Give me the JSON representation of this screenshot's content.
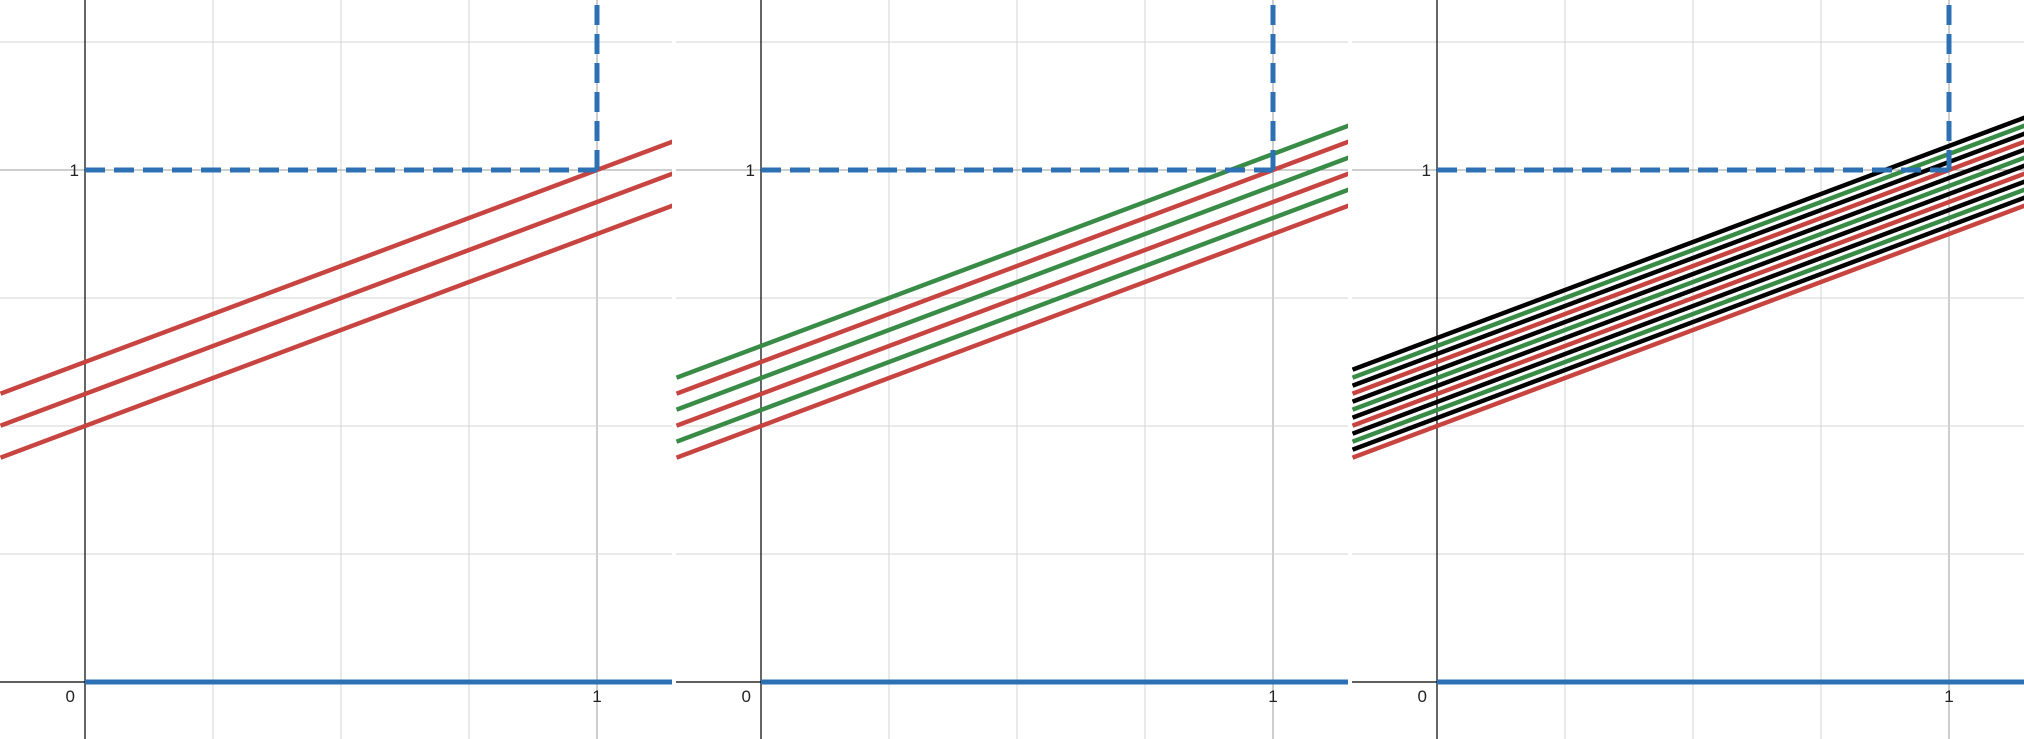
{
  "chart_data": [
    {
      "type": "line",
      "title": "",
      "xlabel": "",
      "ylabel": "",
      "xlim": [
        -0.165,
        1.15
      ],
      "ylim": [
        -0.11,
        1.33
      ],
      "grid": true,
      "x_major_ticks": [
        0,
        1
      ],
      "y_major_ticks": [
        1
      ],
      "minor_step": 0.25,
      "tick_labels": {
        "origin": "0",
        "x_one": "1",
        "y_one": "1"
      },
      "colors": {
        "red": "#c74440",
        "green": "#388c46",
        "black": "#000000",
        "blue": "#2d70b3"
      },
      "boundary": {
        "dashed": [
          {
            "x": [
              0,
              1
            ],
            "y": [
              1,
              1
            ]
          },
          {
            "x": [
              1,
              1
            ],
            "y": [
              1,
              1.35
            ]
          }
        ],
        "solid": [
          {
            "x": [
              0,
              1.15
            ],
            "y": [
              0,
              0
            ]
          }
        ]
      },
      "series": [
        {
          "color": "red",
          "slope": 0.375,
          "intercept": 0.5
        },
        {
          "color": "red",
          "slope": 0.375,
          "intercept": 0.5625
        },
        {
          "color": "red",
          "slope": 0.375,
          "intercept": 0.625
        }
      ]
    },
    {
      "type": "line",
      "title": "",
      "xlabel": "",
      "ylabel": "",
      "xlim": [
        -0.165,
        1.15
      ],
      "ylim": [
        -0.11,
        1.33
      ],
      "grid": true,
      "x_major_ticks": [
        0,
        1
      ],
      "y_major_ticks": [
        1
      ],
      "minor_step": 0.25,
      "tick_labels": {
        "origin": "0",
        "x_one": "1",
        "y_one": "1"
      },
      "colors": {
        "red": "#c74440",
        "green": "#388c46",
        "black": "#000000",
        "blue": "#2d70b3"
      },
      "boundary": {
        "dashed": [
          {
            "x": [
              0,
              1
            ],
            "y": [
              1,
              1
            ]
          },
          {
            "x": [
              1,
              1
            ],
            "y": [
              1,
              1.35
            ]
          }
        ],
        "solid": [
          {
            "x": [
              0,
              1.15
            ],
            "y": [
              0,
              0
            ]
          }
        ]
      },
      "series": [
        {
          "color": "red",
          "slope": 0.375,
          "intercept": 0.5
        },
        {
          "color": "green",
          "slope": 0.375,
          "intercept": 0.53125
        },
        {
          "color": "red",
          "slope": 0.375,
          "intercept": 0.5625
        },
        {
          "color": "green",
          "slope": 0.375,
          "intercept": 0.59375
        },
        {
          "color": "red",
          "slope": 0.375,
          "intercept": 0.625
        },
        {
          "color": "green",
          "slope": 0.375,
          "intercept": 0.65625
        }
      ]
    },
    {
      "type": "line",
      "title": "",
      "xlabel": "",
      "ylabel": "",
      "xlim": [
        -0.165,
        1.15
      ],
      "ylim": [
        -0.11,
        1.33
      ],
      "grid": true,
      "x_major_ticks": [
        0,
        1
      ],
      "y_major_ticks": [
        1
      ],
      "minor_step": 0.25,
      "tick_labels": {
        "origin": "0",
        "x_one": "1",
        "y_one": "1"
      },
      "colors": {
        "red": "#c74440",
        "green": "#388c46",
        "black": "#000000",
        "blue": "#2d70b3"
      },
      "boundary": {
        "dashed": [
          {
            "x": [
              0,
              1
            ],
            "y": [
              1,
              1
            ]
          },
          {
            "x": [
              1,
              1
            ],
            "y": [
              1,
              1.35
            ]
          }
        ],
        "solid": [
          {
            "x": [
              0,
              1.15
            ],
            "y": [
              0,
              0
            ]
          }
        ]
      },
      "series": [
        {
          "color": "red",
          "slope": 0.375,
          "intercept": 0.5
        },
        {
          "color": "black",
          "slope": 0.375,
          "intercept": 0.515625
        },
        {
          "color": "green",
          "slope": 0.375,
          "intercept": 0.53125
        },
        {
          "color": "black",
          "slope": 0.375,
          "intercept": 0.546875
        },
        {
          "color": "red",
          "slope": 0.375,
          "intercept": 0.5625
        },
        {
          "color": "black",
          "slope": 0.375,
          "intercept": 0.578125
        },
        {
          "color": "green",
          "slope": 0.375,
          "intercept": 0.59375
        },
        {
          "color": "black",
          "slope": 0.375,
          "intercept": 0.609375
        },
        {
          "color": "red",
          "slope": 0.375,
          "intercept": 0.625
        },
        {
          "color": "black",
          "slope": 0.375,
          "intercept": 0.640625
        },
        {
          "color": "green",
          "slope": 0.375,
          "intercept": 0.65625
        },
        {
          "color": "black",
          "slope": 0.375,
          "intercept": 0.671875
        }
      ]
    }
  ]
}
